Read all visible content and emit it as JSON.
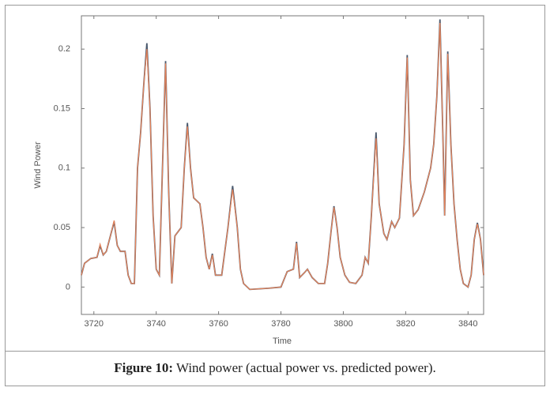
{
  "chart_data": {
    "type": "line",
    "xlabel": "Time",
    "ylabel": "Wind Power",
    "x": [
      3716,
      3717,
      3719,
      3721,
      3722,
      3723,
      3724,
      3725.5,
      3726.5,
      3727.5,
      3728.5,
      3730,
      3731,
      3732,
      3733,
      3734,
      3735,
      3736,
      3737,
      3738,
      3739,
      3740,
      3741,
      3742,
      3743,
      3744,
      3745,
      3746,
      3748,
      3749,
      3750,
      3751,
      3752,
      3754,
      3755,
      3756,
      3757,
      3758,
      3759,
      3761,
      3763,
      3764.5,
      3766,
      3767,
      3768,
      3770,
      3776,
      3780,
      3782,
      3784,
      3785,
      3786,
      3787.5,
      3788.5,
      3790,
      3792,
      3794,
      3795,
      3796,
      3797,
      3798,
      3799,
      3800.5,
      3802,
      3804,
      3806,
      3807,
      3808,
      3809,
      3810.5,
      3811.5,
      3813,
      3814,
      3815.5,
      3816.5,
      3818,
      3819.5,
      3820.5,
      3821.5,
      3822.5,
      3824,
      3826,
      3828,
      3829,
      3830,
      3831,
      3832,
      3832.5,
      3833.5,
      3834.5,
      3835.5,
      3836.5,
      3837.5,
      3838.5,
      3840,
      3841,
      3842,
      3843,
      3844,
      3845
    ],
    "series": [
      {
        "name": "Actual power",
        "color": "#4b5a6e",
        "values": [
          0.01,
          0.02,
          0.024,
          0.025,
          0.035,
          0.027,
          0.03,
          0.045,
          0.055,
          0.035,
          0.03,
          0.03,
          0.01,
          0.003,
          0.003,
          0.1,
          0.13,
          0.17,
          0.205,
          0.15,
          0.06,
          0.015,
          0.01,
          0.1,
          0.19,
          0.08,
          0.003,
          0.043,
          0.05,
          0.1,
          0.138,
          0.1,
          0.075,
          0.07,
          0.05,
          0.025,
          0.015,
          0.028,
          0.01,
          0.01,
          0.05,
          0.085,
          0.05,
          0.015,
          0.003,
          -0.002,
          -0.001,
          0.0,
          0.013,
          0.015,
          0.038,
          0.008,
          0.012,
          0.015,
          0.008,
          0.003,
          0.003,
          0.02,
          0.045,
          0.068,
          0.05,
          0.025,
          0.01,
          0.004,
          0.003,
          0.01,
          0.025,
          0.02,
          0.06,
          0.13,
          0.07,
          0.045,
          0.04,
          0.055,
          0.05,
          0.058,
          0.12,
          0.195,
          0.09,
          0.06,
          0.065,
          0.08,
          0.1,
          0.12,
          0.16,
          0.225,
          0.12,
          0.06,
          0.198,
          0.12,
          0.07,
          0.04,
          0.015,
          0.003,
          0.0,
          0.01,
          0.04,
          0.054,
          0.04,
          0.01
        ]
      },
      {
        "name": "Predicted power",
        "color": "#e8845a",
        "values": [
          0.01,
          0.02,
          0.024,
          0.025,
          0.036,
          0.027,
          0.03,
          0.045,
          0.056,
          0.035,
          0.03,
          0.03,
          0.01,
          0.003,
          0.003,
          0.1,
          0.13,
          0.17,
          0.2,
          0.15,
          0.06,
          0.015,
          0.01,
          0.1,
          0.188,
          0.08,
          0.003,
          0.043,
          0.05,
          0.1,
          0.135,
          0.1,
          0.075,
          0.07,
          0.05,
          0.025,
          0.015,
          0.027,
          0.01,
          0.01,
          0.05,
          0.082,
          0.05,
          0.015,
          0.003,
          -0.002,
          -0.001,
          0.0,
          0.013,
          0.015,
          0.037,
          0.008,
          0.012,
          0.015,
          0.008,
          0.003,
          0.003,
          0.02,
          0.045,
          0.067,
          0.05,
          0.025,
          0.01,
          0.004,
          0.003,
          0.01,
          0.025,
          0.02,
          0.06,
          0.125,
          0.07,
          0.045,
          0.04,
          0.055,
          0.05,
          0.058,
          0.12,
          0.193,
          0.09,
          0.06,
          0.065,
          0.08,
          0.1,
          0.12,
          0.16,
          0.222,
          0.12,
          0.06,
          0.196,
          0.12,
          0.07,
          0.04,
          0.015,
          0.003,
          0.0,
          0.01,
          0.04,
          0.053,
          0.04,
          0.01
        ]
      }
    ],
    "xlim": [
      3716,
      3845
    ],
    "xticks": [
      3720,
      3740,
      3760,
      3780,
      3800,
      3820,
      3840
    ],
    "ylim": [
      -0.023,
      0.228
    ],
    "yticks": [
      0,
      0.05,
      0.1,
      0.15,
      0.2
    ]
  },
  "caption": {
    "label": "Figure 10:",
    "text": "Wind power (actual power vs. predicted power)."
  }
}
